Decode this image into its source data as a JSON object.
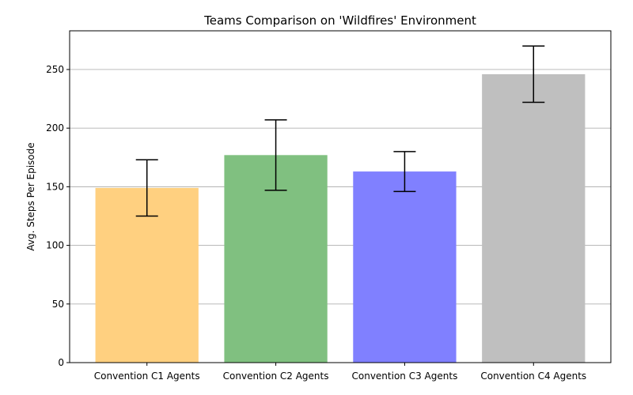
{
  "chart_data": {
    "type": "bar",
    "title": "Teams Comparison on 'Wildfires' Environment",
    "xlabel": "",
    "ylabel": "Avg. Steps Per Episode",
    "categories": [
      "Convention C1 Agents",
      "Convention C2 Agents",
      "Convention C3 Agents",
      "Convention C4 Agents"
    ],
    "values": [
      149,
      177,
      163,
      246
    ],
    "error_low": [
      125,
      147,
      146,
      222
    ],
    "error_high": [
      173,
      207,
      180,
      270
    ],
    "colors": [
      "#ffd080",
      "#80c080",
      "#8080ff",
      "#bfbfbf"
    ],
    "ylim": [
      0,
      283
    ],
    "yticks": [
      0,
      50,
      100,
      150,
      200,
      250
    ],
    "grid": "y",
    "legend": "none"
  }
}
